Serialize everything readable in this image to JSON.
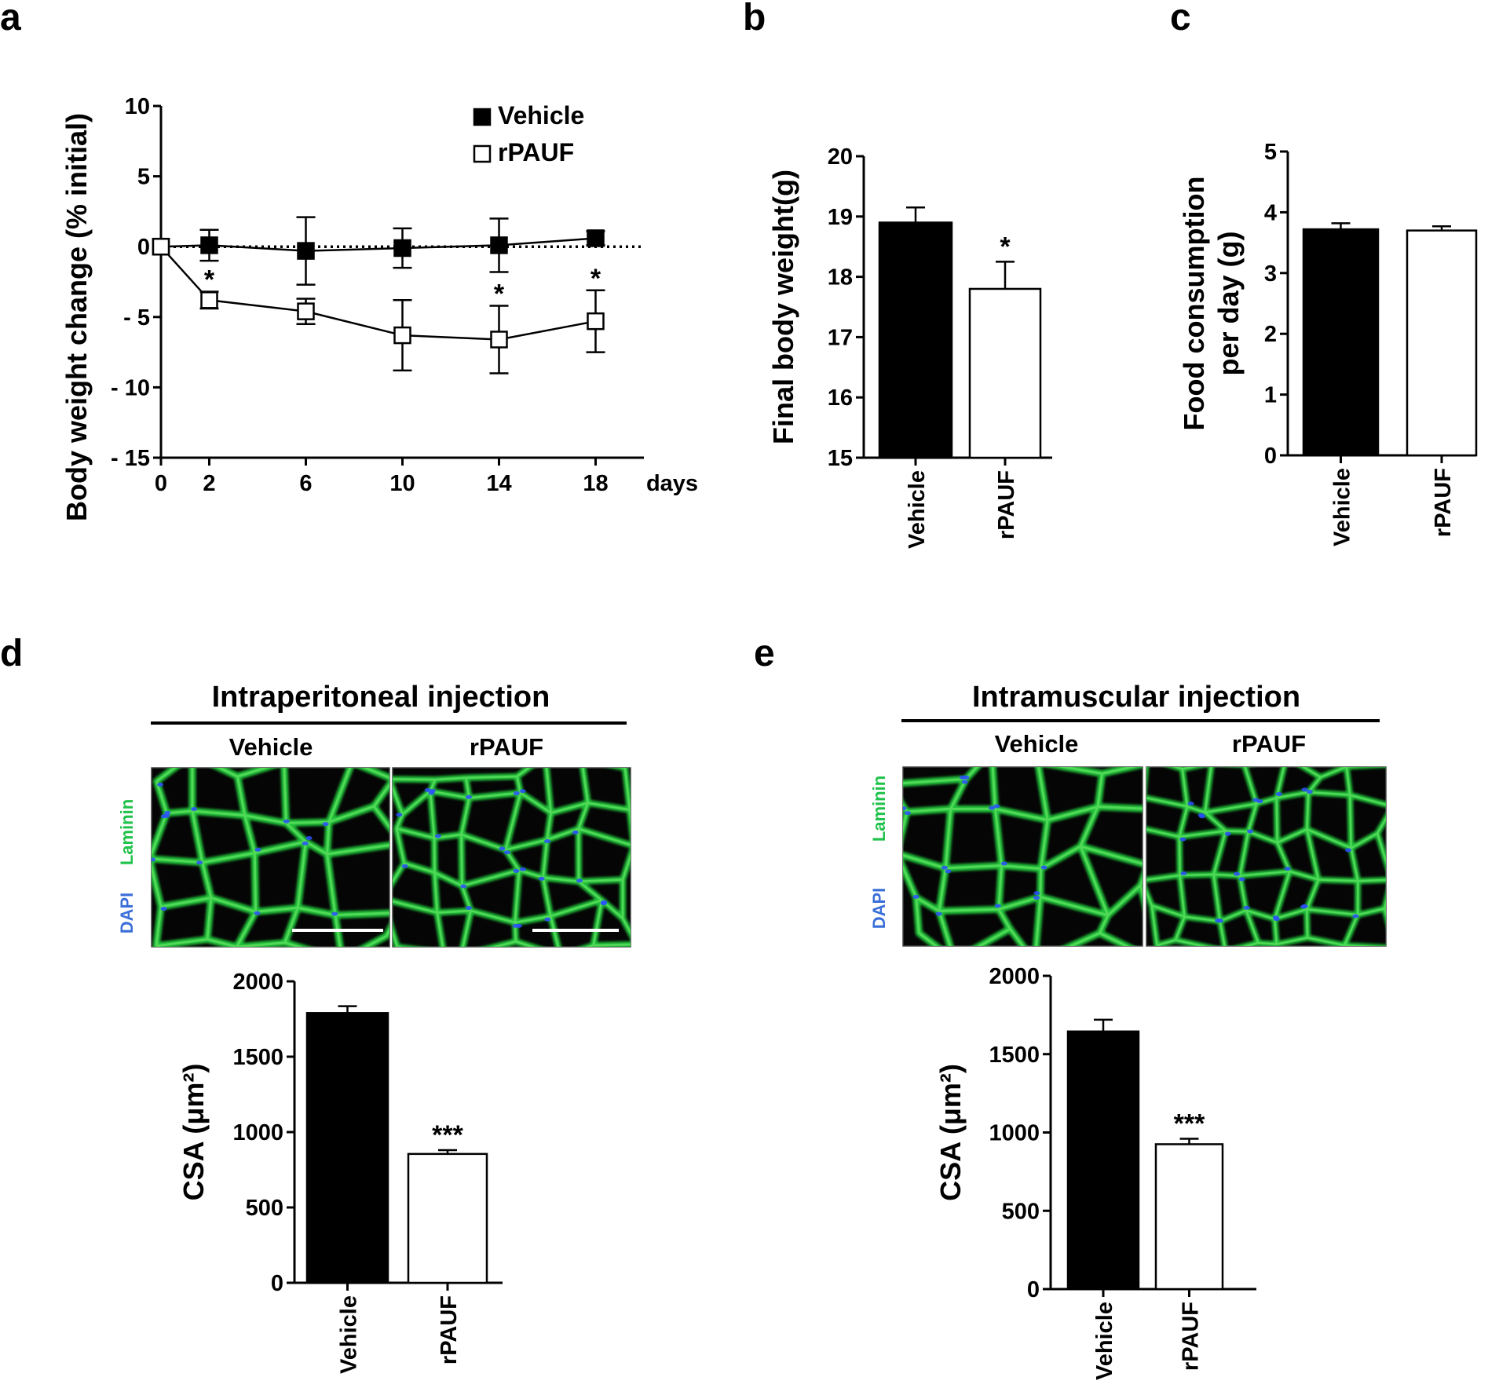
{
  "panels": {
    "a": {
      "label": "a"
    },
    "b": {
      "label": "b"
    },
    "c": {
      "label": "c"
    },
    "d": {
      "label": "d",
      "title": "Intraperitoneal injection",
      "cols": [
        "Vehicle",
        "rPAUF"
      ]
    },
    "e": {
      "label": "e",
      "title": "Intramuscular injection",
      "cols": [
        "Vehicle",
        "rPAUF"
      ]
    }
  },
  "stain": {
    "laminin": "Laminin",
    "dapi": "DAPI",
    "laminin_color": "#1fc24a",
    "dapi_color": "#3a6fd8"
  },
  "colors": {
    "vehicle": "#000000",
    "rpauf": "#ffffff",
    "axis": "#000000",
    "micro_bg": "#050505",
    "membrane": "#22c33a",
    "nuclei": "#2a4dff"
  },
  "chart_data": [
    {
      "id": "a",
      "type": "line",
      "ylabel": "Body weight change (% initial)",
      "xlabel": "days",
      "x": [
        0,
        2,
        6,
        10,
        14,
        18
      ],
      "xticks": [
        "0",
        "2",
        "6",
        "10",
        "14",
        "18"
      ],
      "ylim": [
        -15,
        10
      ],
      "yticks": [
        10,
        5,
        0,
        -5,
        -10,
        -15
      ],
      "ytick_labels": [
        "10",
        "5",
        "0",
        "- 5",
        "- 10",
        "- 15"
      ],
      "legend": "top-right",
      "reference_line": 0,
      "series": [
        {
          "name": "Vehicle",
          "marker": "filled-square",
          "values": [
            0,
            0.1,
            -0.3,
            -0.1,
            0.1,
            0.6
          ],
          "errors": [
            0,
            1.1,
            2.4,
            1.4,
            1.9,
            0.5
          ]
        },
        {
          "name": "rPAUF",
          "marker": "open-square",
          "values": [
            0,
            -3.8,
            -4.6,
            -6.3,
            -6.6,
            -5.3
          ],
          "errors": [
            0,
            0.6,
            0.9,
            2.5,
            2.4,
            2.2
          ],
          "significance": [
            "",
            "*",
            "",
            "",
            "*",
            "*"
          ]
        }
      ]
    },
    {
      "id": "b",
      "type": "bar",
      "ylabel": "Final body weight(g)",
      "categories": [
        "Vehicle",
        "rPAUF"
      ],
      "values": [
        18.9,
        17.8
      ],
      "errors": [
        0.25,
        0.45
      ],
      "significance": [
        "",
        "*"
      ],
      "ylim": [
        15,
        20
      ],
      "yticks": [
        20,
        19,
        18,
        17,
        16,
        15
      ]
    },
    {
      "id": "c",
      "type": "bar",
      "ylabel": [
        "Food consumption",
        "per day (g)"
      ],
      "categories": [
        "Vehicle",
        "rPAUF"
      ],
      "values": [
        3.72,
        3.7
      ],
      "errors": [
        0.1,
        0.07
      ],
      "significance": [
        "",
        ""
      ],
      "ylim": [
        0,
        5
      ],
      "yticks": [
        5,
        4,
        3,
        2,
        1,
        0
      ]
    },
    {
      "id": "d",
      "type": "bar",
      "ylabel": "CSA (μm²)",
      "categories": [
        "Vehicle",
        "rPAUF"
      ],
      "values": [
        1790,
        855
      ],
      "errors": [
        45,
        25
      ],
      "significance": [
        "",
        "***"
      ],
      "ylim": [
        0,
        2000
      ],
      "yticks": [
        2000,
        1500,
        1000,
        500,
        0
      ]
    },
    {
      "id": "e",
      "type": "bar",
      "ylabel": "CSA (μm²)",
      "categories": [
        "Vehicle",
        "rPAUF"
      ],
      "values": [
        1645,
        925
      ],
      "errors": [
        75,
        35
      ],
      "significance": [
        "",
        "***"
      ],
      "ylim": [
        0,
        2000
      ],
      "yticks": [
        2000,
        1500,
        1000,
        500,
        0
      ]
    }
  ]
}
